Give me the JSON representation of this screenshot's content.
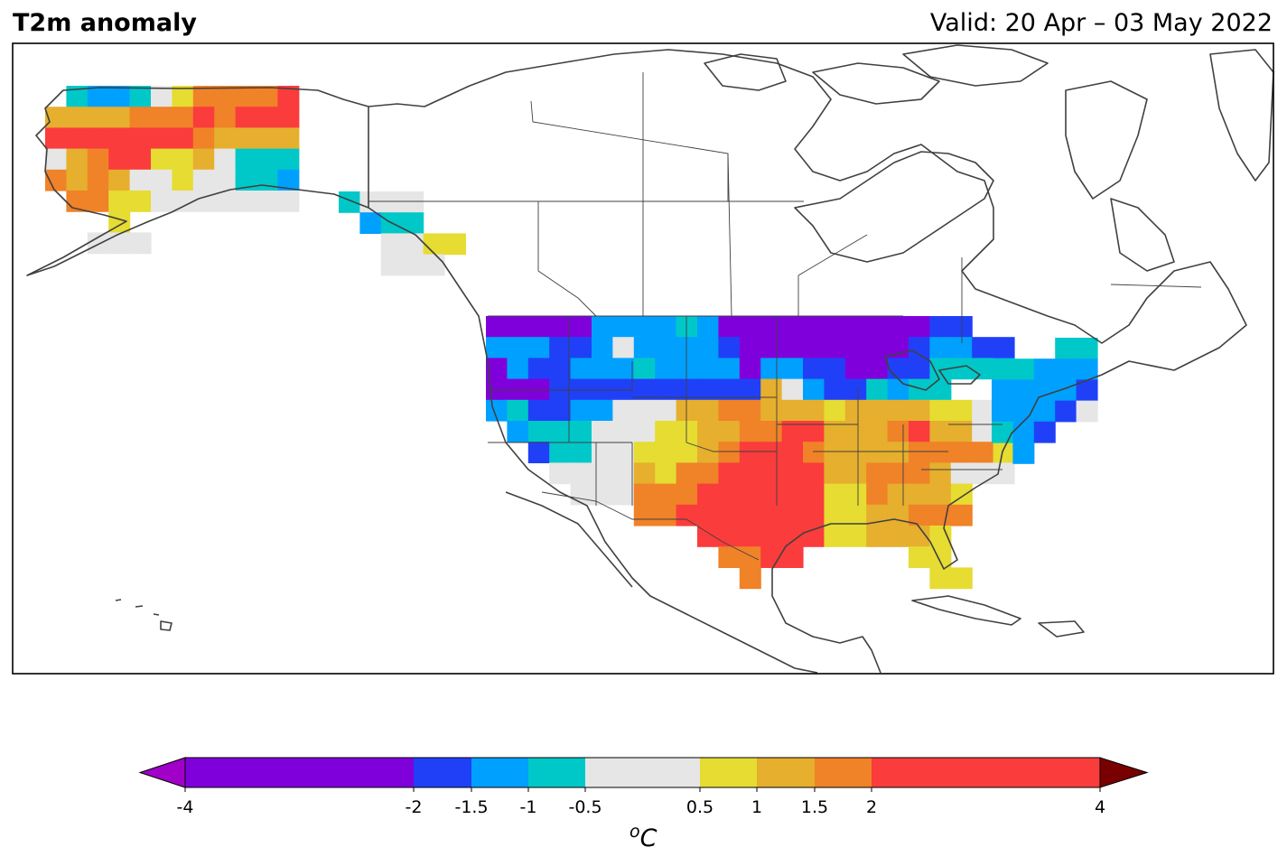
{
  "header": {
    "title": "T2m anomaly",
    "valid": "Valid: 20 Apr – 03 May 2022"
  },
  "colorbar": {
    "unit_sup": "o",
    "unit": "C",
    "ticks": [
      "-4",
      "-2",
      "-1.5",
      "-1",
      "-0.5",
      "0.5",
      "1",
      "1.5",
      "2",
      "4"
    ],
    "bins": [
      {
        "from": -4,
        "to": -2,
        "color": "#8000dc"
      },
      {
        "from": -2,
        "to": -1.5,
        "color": "#2040f8"
      },
      {
        "from": -1.5,
        "to": -1,
        "color": "#00a0ff"
      },
      {
        "from": -1,
        "to": -0.5,
        "color": "#00c8c8"
      },
      {
        "from": -0.5,
        "to": 0.5,
        "color": "#e6e6e6"
      },
      {
        "from": 0.5,
        "to": 1,
        "color": "#e6dc32"
      },
      {
        "from": 1,
        "to": 1.5,
        "color": "#e6af2d"
      },
      {
        "from": 1.5,
        "to": 2,
        "color": "#f08228"
      },
      {
        "from": 2,
        "to": 4,
        "color": "#fa3c3c"
      }
    ],
    "under_color": "#a000c8",
    "over_color": "#780000"
  },
  "map": {
    "region": "North America",
    "coastline_color": "#404040",
    "frame_color": "#000000"
  }
}
